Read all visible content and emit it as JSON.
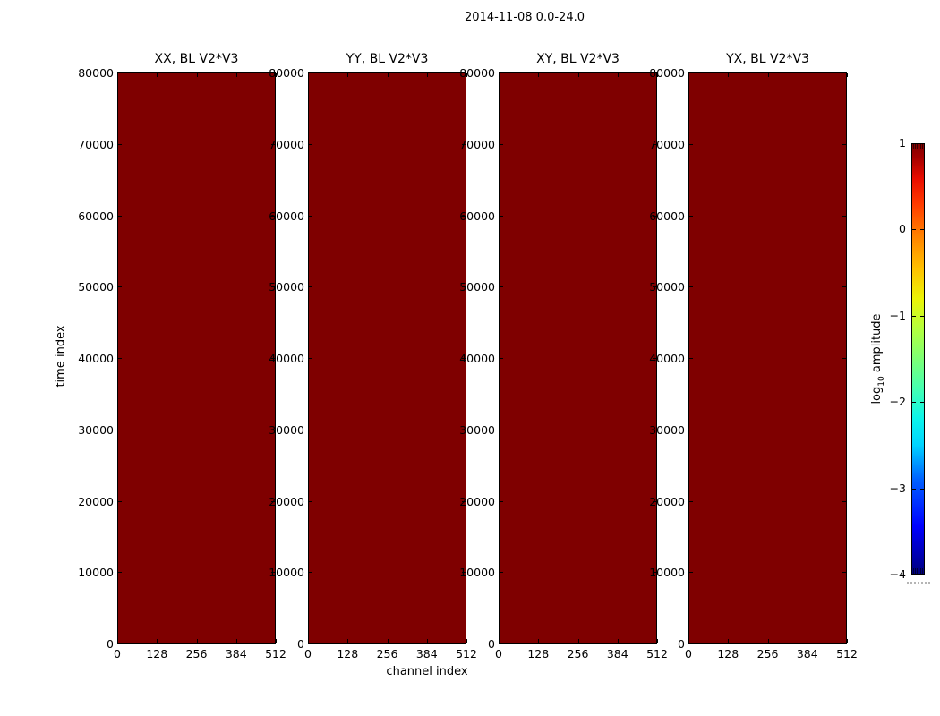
{
  "figure": {
    "suptitle": "2014-11-08 0.0-24.0",
    "xlabel": "channel index",
    "ylabel": "time index",
    "background_color": "#ffffff"
  },
  "chart_data": {
    "type": "heatmap",
    "title": "2014-11-08 0.0-24.0",
    "xlabel": "channel index",
    "ylabel": "time index",
    "xlim": [
      0,
      512
    ],
    "ylim": [
      0,
      80000
    ],
    "x_ticks": [
      0,
      128,
      256,
      384,
      512
    ],
    "y_ticks": [
      0,
      10000,
      20000,
      30000,
      40000,
      50000,
      60000,
      70000,
      80000
    ],
    "grid": false,
    "panels": [
      {
        "title": "XX, BL V2*V3",
        "uniform_fill_color": "#7f0000"
      },
      {
        "title": "YY, BL V2*V3",
        "uniform_fill_color": "#7f0000"
      },
      {
        "title": "XY, BL V2*V3",
        "uniform_fill_color": "#7f0000"
      },
      {
        "title": "YX, BL V2*V3",
        "uniform_fill_color": "#7f0000"
      }
    ],
    "values_note": "all heatmap cells are uniformly saturated at the colormap maximum (dark red, log10 amplitude >= 1)",
    "colorbar": {
      "label": "log10 amplitude",
      "label_pre": "log",
      "label_sub": "10",
      "label_post": " amplitude",
      "ticks": [
        1,
        0,
        -1,
        -2,
        -3,
        -4
      ],
      "vmin": -4,
      "vmax": 1,
      "colormap": "jet",
      "max_color": "#7f0000",
      "min_color": "#00007f",
      "position": "right"
    }
  }
}
